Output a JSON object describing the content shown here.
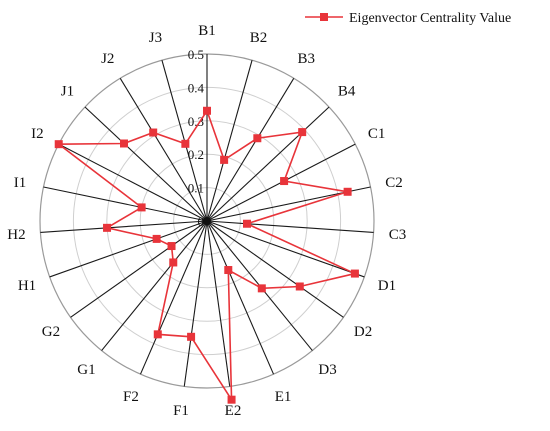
{
  "chart_data": {
    "type": "radar",
    "categories": [
      "B1",
      "B2",
      "B3",
      "B4",
      "C1",
      "C2",
      "C3",
      "D1",
      "D2",
      "D3",
      "E1",
      "E2",
      "F1",
      "F2",
      "G1",
      "G2",
      "H1",
      "H2",
      "I1",
      "I2",
      "J1",
      "J2",
      "J3"
    ],
    "series": [
      {
        "name": "Eigenvector Centrality Value",
        "values": [
          0.33,
          0.19,
          0.29,
          0.39,
          0.26,
          0.43,
          0.12,
          0.47,
          0.34,
          0.26,
          0.16,
          0.54,
          0.35,
          0.37,
          0.16,
          0.13,
          0.16,
          0.3,
          0.2,
          0.5,
          0.34,
          0.31,
          0.24
        ],
        "color": "#e8343a"
      }
    ],
    "rlim": [
      0,
      0.5
    ],
    "ticks": [
      "0",
      "0.1",
      "0.2",
      "0.3",
      "0.4",
      "0.5"
    ],
    "grid": true,
    "legend": "top-right"
  }
}
